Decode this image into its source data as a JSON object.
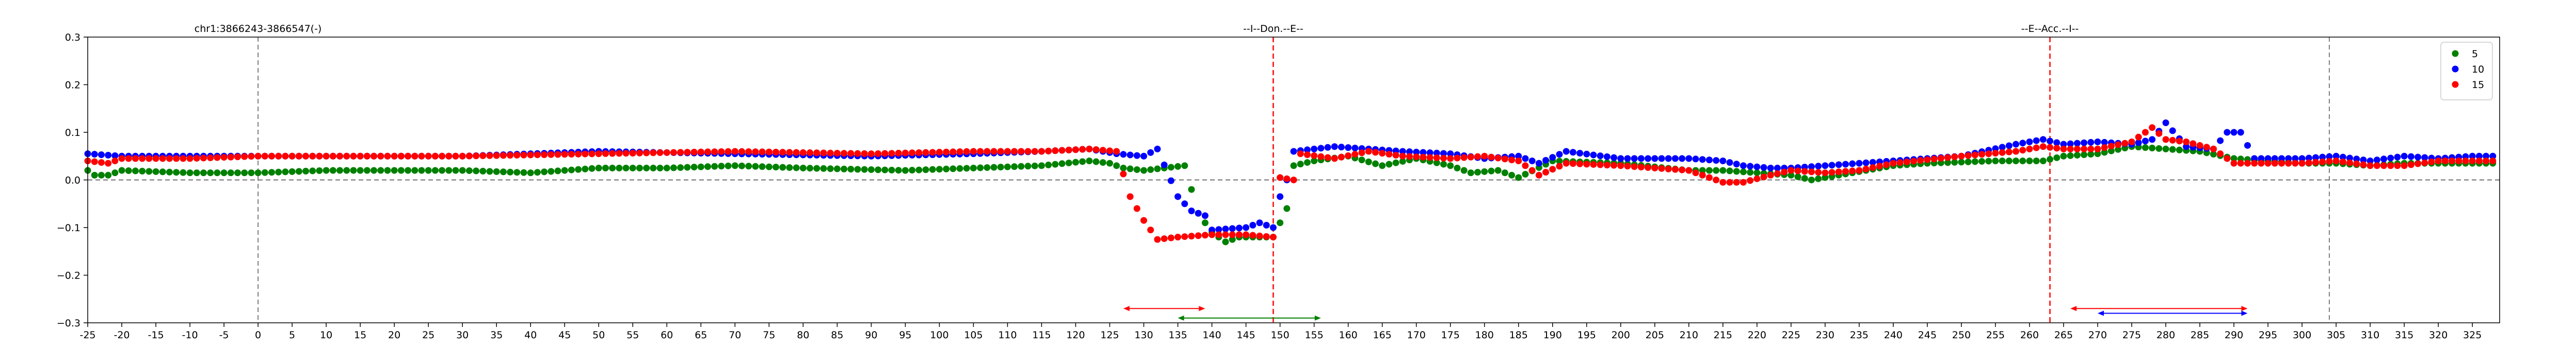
{
  "chart_data": {
    "type": "scatter",
    "title": "",
    "xlabel": "",
    "ylabel": "",
    "xlim": [
      -25,
      329
    ],
    "ylim": [
      -0.3,
      0.3
    ],
    "x_ticks": [
      -25,
      -20,
      -15,
      -10,
      -5,
      0,
      5,
      10,
      15,
      20,
      25,
      30,
      35,
      40,
      45,
      50,
      55,
      60,
      65,
      70,
      75,
      80,
      85,
      90,
      95,
      100,
      105,
      110,
      115,
      120,
      125,
      130,
      135,
      140,
      145,
      150,
      155,
      160,
      165,
      170,
      175,
      180,
      185,
      190,
      195,
      200,
      205,
      210,
      215,
      220,
      225,
      230,
      235,
      240,
      245,
      250,
      255,
      260,
      265,
      270,
      275,
      280,
      285,
      290,
      295,
      300,
      305,
      310,
      315,
      320,
      325
    ],
    "x_tick_labels": [
      "-25",
      "-20",
      "-15",
      "-10",
      "-5",
      "0",
      "5",
      "10",
      "15",
      "20",
      "25",
      "30",
      "35",
      "40",
      "45",
      "50",
      "55",
      "60",
      "65",
      "70",
      "75",
      "80",
      "85",
      "90",
      "95",
      "100",
      "105",
      "110",
      "115",
      "120",
      "125",
      "130",
      "135",
      "140",
      "145",
      "150",
      "155",
      "160",
      "165",
      "170",
      "175",
      "180",
      "185",
      "190",
      "195",
      "200",
      "205",
      "210",
      "215",
      "220",
      "225",
      "230",
      "235",
      "240",
      "245",
      "250",
      "255",
      "260",
      "265",
      "270",
      "275",
      "280",
      "285",
      "290",
      "295",
      "300",
      "305",
      "310",
      "315",
      "320",
      "325"
    ],
    "y_ticks": [
      -0.3,
      -0.2,
      -0.1,
      0.0,
      0.1,
      0.2,
      0.3
    ],
    "y_tick_labels": [
      "−0.3",
      "−0.2",
      "−0.1",
      "0.0",
      "0.1",
      "0.2",
      "0.3"
    ],
    "legend_position": "top-right",
    "annotations": [
      {
        "x": 0,
        "text": "chr1:3866243-3866547(-)"
      },
      {
        "x": 149,
        "text": "--I--Don.--E--"
      },
      {
        "x": 263,
        "text": "--E--Acc.--I--"
      }
    ],
    "reference_lines": {
      "horizontal_dashed_y": 0.0,
      "vertical_gray_dashed_x": [
        0,
        304
      ],
      "vertical_red_dashed_x": [
        149,
        263
      ]
    },
    "range_arrows": [
      {
        "x_start": 127,
        "x_end": 139,
        "y": -0.27,
        "color": "#ff0000"
      },
      {
        "x_start": 135,
        "x_end": 156,
        "y": -0.29,
        "color": "#008000"
      },
      {
        "x_start": 266,
        "x_end": 292,
        "y": -0.27,
        "color": "#ff0000"
      },
      {
        "x_start": 270,
        "x_end": 292,
        "y": -0.28,
        "color": "#0000ff"
      }
    ],
    "series": [
      {
        "name": "5",
        "color": "#008000",
        "keypoints": [
          [
            -25,
            0.02
          ],
          [
            -24,
            0.01
          ],
          [
            -22,
            0.01
          ],
          [
            -20,
            0.02
          ],
          [
            -10,
            0.015
          ],
          [
            0,
            0.015
          ],
          [
            10,
            0.02
          ],
          [
            30,
            0.02
          ],
          [
            40,
            0.015
          ],
          [
            50,
            0.025
          ],
          [
            60,
            0.025
          ],
          [
            70,
            0.03
          ],
          [
            80,
            0.025
          ],
          [
            95,
            0.02
          ],
          [
            105,
            0.025
          ],
          [
            115,
            0.03
          ],
          [
            122,
            0.04
          ],
          [
            125,
            0.035
          ],
          [
            127,
            0.025
          ],
          [
            130,
            0.02
          ],
          [
            133,
            0.025
          ],
          [
            136,
            0.03
          ],
          [
            138,
            -0.07
          ],
          [
            140,
            -0.11
          ],
          [
            142,
            -0.13
          ],
          [
            144,
            -0.12
          ],
          [
            147,
            -0.12
          ],
          [
            149,
            -0.12
          ],
          [
            150,
            -0.09
          ],
          [
            151,
            -0.06
          ],
          [
            152,
            0.03
          ],
          [
            155,
            0.04
          ],
          [
            160,
            0.05
          ],
          [
            165,
            0.03
          ],
          [
            170,
            0.045
          ],
          [
            175,
            0.03
          ],
          [
            178,
            0.015
          ],
          [
            182,
            0.02
          ],
          [
            185,
            0.005
          ],
          [
            190,
            0.04
          ],
          [
            200,
            0.035
          ],
          [
            210,
            0.02
          ],
          [
            215,
            0.02
          ],
          [
            220,
            0.015
          ],
          [
            225,
            0.01
          ],
          [
            228,
            0.0
          ],
          [
            232,
            0.01
          ],
          [
            240,
            0.03
          ],
          [
            245,
            0.035
          ],
          [
            255,
            0.04
          ],
          [
            262,
            0.04
          ],
          [
            265,
            0.05
          ],
          [
            270,
            0.055
          ],
          [
            275,
            0.07
          ],
          [
            280,
            0.065
          ],
          [
            285,
            0.06
          ],
          [
            290,
            0.045
          ],
          [
            295,
            0.04
          ],
          [
            300,
            0.035
          ],
          [
            305,
            0.035
          ],
          [
            310,
            0.03
          ],
          [
            315,
            0.035
          ],
          [
            320,
            0.035
          ],
          [
            325,
            0.035
          ],
          [
            328,
            0.035
          ]
        ]
      },
      {
        "name": "10",
        "color": "#0000ff",
        "keypoints": [
          [
            -25,
            0.055
          ],
          [
            -20,
            0.05
          ],
          [
            -10,
            0.05
          ],
          [
            0,
            0.05
          ],
          [
            10,
            0.05
          ],
          [
            30,
            0.05
          ],
          [
            50,
            0.06
          ],
          [
            70,
            0.055
          ],
          [
            90,
            0.05
          ],
          [
            105,
            0.055
          ],
          [
            115,
            0.06
          ],
          [
            122,
            0.065
          ],
          [
            126,
            0.055
          ],
          [
            130,
            0.05
          ],
          [
            132,
            0.065
          ],
          [
            135,
            -0.035
          ],
          [
            137,
            -0.065
          ],
          [
            139,
            -0.075
          ],
          [
            140,
            -0.105
          ],
          [
            145,
            -0.1
          ],
          [
            147,
            -0.09
          ],
          [
            149,
            -0.1
          ],
          [
            150,
            -0.035
          ],
          [
            151,
            0.0
          ],
          [
            152,
            0.06
          ],
          [
            158,
            0.07
          ],
          [
            163,
            0.065
          ],
          [
            168,
            0.06
          ],
          [
            175,
            0.055
          ],
          [
            180,
            0.045
          ],
          [
            185,
            0.05
          ],
          [
            188,
            0.035
          ],
          [
            192,
            0.06
          ],
          [
            200,
            0.045
          ],
          [
            210,
            0.045
          ],
          [
            215,
            0.04
          ],
          [
            218,
            0.03
          ],
          [
            222,
            0.025
          ],
          [
            225,
            0.025
          ],
          [
            230,
            0.03
          ],
          [
            235,
            0.035
          ],
          [
            240,
            0.04
          ],
          [
            250,
            0.05
          ],
          [
            258,
            0.075
          ],
          [
            262,
            0.085
          ],
          [
            265,
            0.075
          ],
          [
            270,
            0.08
          ],
          [
            275,
            0.075
          ],
          [
            278,
            0.085
          ],
          [
            280,
            0.12
          ],
          [
            283,
            0.07
          ],
          [
            287,
            0.065
          ],
          [
            289,
            0.1
          ],
          [
            291,
            0.1
          ],
          [
            293,
            0.045
          ],
          [
            300,
            0.045
          ],
          [
            305,
            0.05
          ],
          [
            310,
            0.04
          ],
          [
            315,
            0.05
          ],
          [
            320,
            0.045
          ],
          [
            325,
            0.05
          ],
          [
            328,
            0.05
          ]
        ]
      },
      {
        "name": "15",
        "color": "#ff0000",
        "keypoints": [
          [
            -25,
            0.04
          ],
          [
            -22,
            0.035
          ],
          [
            -20,
            0.045
          ],
          [
            -10,
            0.045
          ],
          [
            0,
            0.05
          ],
          [
            10,
            0.05
          ],
          [
            30,
            0.05
          ],
          [
            50,
            0.055
          ],
          [
            70,
            0.06
          ],
          [
            90,
            0.055
          ],
          [
            105,
            0.06
          ],
          [
            115,
            0.06
          ],
          [
            122,
            0.065
          ],
          [
            126,
            0.06
          ],
          [
            128,
            -0.035
          ],
          [
            130,
            -0.085
          ],
          [
            132,
            -0.125
          ],
          [
            135,
            -0.12
          ],
          [
            140,
            -0.115
          ],
          [
            145,
            -0.115
          ],
          [
            149,
            -0.12
          ],
          [
            150,
            0.005
          ],
          [
            152,
            0.0
          ],
          [
            153,
            0.055
          ],
          [
            158,
            0.045
          ],
          [
            163,
            0.06
          ],
          [
            168,
            0.05
          ],
          [
            175,
            0.045
          ],
          [
            180,
            0.05
          ],
          [
            185,
            0.04
          ],
          [
            188,
            0.01
          ],
          [
            192,
            0.035
          ],
          [
            200,
            0.03
          ],
          [
            210,
            0.02
          ],
          [
            215,
            -0.005
          ],
          [
            218,
            -0.005
          ],
          [
            222,
            0.01
          ],
          [
            225,
            0.02
          ],
          [
            230,
            0.015
          ],
          [
            235,
            0.02
          ],
          [
            240,
            0.035
          ],
          [
            250,
            0.05
          ],
          [
            258,
            0.06
          ],
          [
            262,
            0.07
          ],
          [
            265,
            0.065
          ],
          [
            270,
            0.065
          ],
          [
            275,
            0.08
          ],
          [
            278,
            0.11
          ],
          [
            280,
            0.085
          ],
          [
            283,
            0.08
          ],
          [
            287,
            0.065
          ],
          [
            290,
            0.035
          ],
          [
            295,
            0.035
          ],
          [
            300,
            0.035
          ],
          [
            305,
            0.04
          ],
          [
            310,
            0.03
          ],
          [
            315,
            0.03
          ],
          [
            320,
            0.04
          ],
          [
            325,
            0.04
          ],
          [
            328,
            0.04
          ]
        ]
      }
    ]
  }
}
